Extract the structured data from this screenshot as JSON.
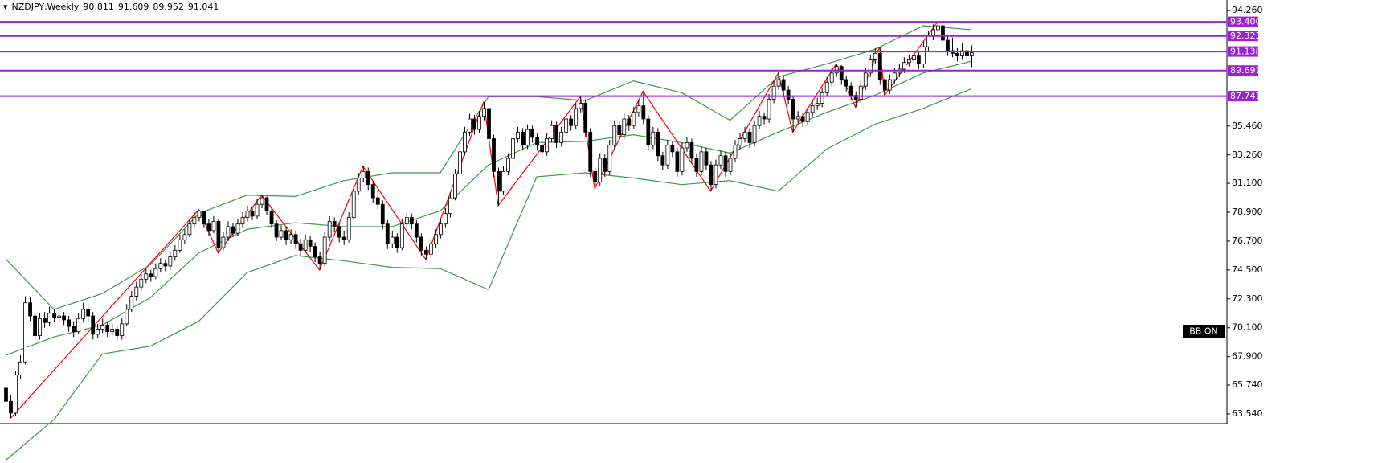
{
  "chart_data": {
    "type": "candlestick",
    "title": "NZDJPY,Weekly",
    "header_values": [
      90.811,
      91.609,
      89.952,
      91.041
    ],
    "annotation": "BB ON",
    "ylim": [
      62.8,
      95.06
    ],
    "yticks": [
      {
        "value": 94.26,
        "label": "94.260"
      },
      {
        "value": 85.46,
        "label": "85.460"
      },
      {
        "value": 83.26,
        "label": "83.260"
      },
      {
        "value": 81.1,
        "label": "81.100"
      },
      {
        "value": 78.9,
        "label": "78.900"
      },
      {
        "value": 76.7,
        "label": "76.700"
      },
      {
        "value": 74.5,
        "label": "74.500"
      },
      {
        "value": 72.3,
        "label": "72.300"
      },
      {
        "value": 70.1,
        "label": "70.100"
      },
      {
        "value": 67.9,
        "label": "67.900"
      },
      {
        "value": 65.74,
        "label": "65.740"
      },
      {
        "value": 63.54,
        "label": "63.540"
      }
    ],
    "up_color": "#ffffff",
    "down_color": "#000000",
    "band_color": "#3b9a4b",
    "zigzag_color": "#ff0000",
    "level_color": "#9b1fd6",
    "levels": [
      {
        "value": 93.4,
        "label": "93.400"
      },
      {
        "value": 92.323,
        "label": "92.323"
      },
      {
        "value": 91.138,
        "label": "91.138"
      },
      {
        "value": 89.691,
        "label": "89.691"
      },
      {
        "value": 87.741,
        "label": "87.741"
      }
    ],
    "candles": [
      [
        65.5,
        66.0,
        63.8,
        64.5
      ],
      [
        64.5,
        65.0,
        63.2,
        63.6
      ],
      [
        63.6,
        66.8,
        63.4,
        66.5
      ],
      [
        66.5,
        68.0,
        66.2,
        67.5
      ],
      [
        67.5,
        72.5,
        67.3,
        72.0
      ],
      [
        72.0,
        72.4,
        70.6,
        71.0
      ],
      [
        71.0,
        71.4,
        69.0,
        69.5
      ],
      [
        69.5,
        71.2,
        69.2,
        70.8
      ],
      [
        70.8,
        71.3,
        70.1,
        70.5
      ],
      [
        70.5,
        71.7,
        70.2,
        71.2
      ],
      [
        71.2,
        71.5,
        70.5,
        70.9
      ],
      [
        70.9,
        71.4,
        70.6,
        71.0
      ],
      [
        71.0,
        71.3,
        70.3,
        70.7
      ],
      [
        70.7,
        71.0,
        69.8,
        70.2
      ],
      [
        70.2,
        70.6,
        69.4,
        69.8
      ],
      [
        69.8,
        71.2,
        69.6,
        70.8
      ],
      [
        70.8,
        72.0,
        70.5,
        71.5
      ],
      [
        71.5,
        71.9,
        70.6,
        71.0
      ],
      [
        71.0,
        71.3,
        69.2,
        69.6
      ],
      [
        69.6,
        70.4,
        69.3,
        70.0
      ],
      [
        70.0,
        70.8,
        69.7,
        70.3
      ],
      [
        70.3,
        70.6,
        69.4,
        69.8
      ],
      [
        69.8,
        70.4,
        69.5,
        70.0
      ],
      [
        70.0,
        70.3,
        69.1,
        69.5
      ],
      [
        69.5,
        70.8,
        69.2,
        70.4
      ],
      [
        70.4,
        71.9,
        70.2,
        71.5
      ],
      [
        71.5,
        72.9,
        71.3,
        72.5
      ],
      [
        72.5,
        73.6,
        72.2,
        73.2
      ],
      [
        73.2,
        74.2,
        72.9,
        73.8
      ],
      [
        73.8,
        74.6,
        73.5,
        74.2
      ],
      [
        74.2,
        74.5,
        73.6,
        74.0
      ],
      [
        74.0,
        75.0,
        73.8,
        74.6
      ],
      [
        74.6,
        75.4,
        74.3,
        75.0
      ],
      [
        75.0,
        75.3,
        74.4,
        74.8
      ],
      [
        74.8,
        75.9,
        74.5,
        75.5
      ],
      [
        75.5,
        76.4,
        75.2,
        76.0
      ],
      [
        76.0,
        77.2,
        75.8,
        76.8
      ],
      [
        76.8,
        77.6,
        76.5,
        77.2
      ],
      [
        77.2,
        78.4,
        77.0,
        78.0
      ],
      [
        78.0,
        78.9,
        77.7,
        78.5
      ],
      [
        78.5,
        79.1,
        78.2,
        79.0
      ],
      [
        79.0,
        79.0,
        77.7,
        78.0
      ],
      [
        78.0,
        78.4,
        77.1,
        77.5
      ],
      [
        77.5,
        78.6,
        77.3,
        78.2
      ],
      [
        78.2,
        78.4,
        75.8,
        76.2
      ],
      [
        76.2,
        77.4,
        76.0,
        77.0
      ],
      [
        77.0,
        78.2,
        76.7,
        77.8
      ],
      [
        77.8,
        78.1,
        77.0,
        77.3
      ],
      [
        77.3,
        78.4,
        77.1,
        78.0
      ],
      [
        78.0,
        78.9,
        77.7,
        78.5
      ],
      [
        78.5,
        79.4,
        78.2,
        79.0
      ],
      [
        79.0,
        79.3,
        78.3,
        78.6
      ],
      [
        78.6,
        79.9,
        78.4,
        79.5
      ],
      [
        79.5,
        80.2,
        79.2,
        80.0
      ],
      [
        80.0,
        80.1,
        78.7,
        79.0
      ],
      [
        79.0,
        79.3,
        77.7,
        78.0
      ],
      [
        78.0,
        78.3,
        76.7,
        77.0
      ],
      [
        77.0,
        77.9,
        76.8,
        77.5
      ],
      [
        77.5,
        77.8,
        76.4,
        76.8
      ],
      [
        76.8,
        77.6,
        76.5,
        77.2
      ],
      [
        77.2,
        77.5,
        76.1,
        76.5
      ],
      [
        76.5,
        76.9,
        75.6,
        76.0
      ],
      [
        76.0,
        77.2,
        75.8,
        76.8
      ],
      [
        76.8,
        77.1,
        75.9,
        76.3
      ],
      [
        76.3,
        76.6,
        75.1,
        75.5
      ],
      [
        75.5,
        75.9,
        74.5,
        75.0
      ],
      [
        75.0,
        77.4,
        74.8,
        77.0
      ],
      [
        77.0,
        78.6,
        76.7,
        78.2
      ],
      [
        78.2,
        78.5,
        77.4,
        77.8
      ],
      [
        77.8,
        78.1,
        76.6,
        77.0
      ],
      [
        77.0,
        77.5,
        76.4,
        76.8
      ],
      [
        76.8,
        78.9,
        76.6,
        78.5
      ],
      [
        78.5,
        80.9,
        78.3,
        80.5
      ],
      [
        80.5,
        81.9,
        80.2,
        81.5
      ],
      [
        81.5,
        82.4,
        81.2,
        82.0
      ],
      [
        82.0,
        82.3,
        80.6,
        81.0
      ],
      [
        81.0,
        81.3,
        79.6,
        80.0
      ],
      [
        80.0,
        80.6,
        79.1,
        79.5
      ],
      [
        79.5,
        79.8,
        77.6,
        78.0
      ],
      [
        78.0,
        78.3,
        76.1,
        76.5
      ],
      [
        76.5,
        77.5,
        76.2,
        77.0
      ],
      [
        77.0,
        77.3,
        75.8,
        76.2
      ],
      [
        76.2,
        78.4,
        76.0,
        78.0
      ],
      [
        78.0,
        78.9,
        77.7,
        78.5
      ],
      [
        78.5,
        78.8,
        77.6,
        78.0
      ],
      [
        78.0,
        78.3,
        76.6,
        77.0
      ],
      [
        77.0,
        77.3,
        75.6,
        76.0
      ],
      [
        76.0,
        76.3,
        75.3,
        75.7
      ],
      [
        75.7,
        76.9,
        75.4,
        76.5
      ],
      [
        76.5,
        77.6,
        76.2,
        77.2
      ],
      [
        77.2,
        78.4,
        76.9,
        78.0
      ],
      [
        78.0,
        79.2,
        77.7,
        78.8
      ],
      [
        78.8,
        80.4,
        78.5,
        80.0
      ],
      [
        80.0,
        82.2,
        79.8,
        81.8
      ],
      [
        81.8,
        83.9,
        81.5,
        83.5
      ],
      [
        83.5,
        85.4,
        83.2,
        85.0
      ],
      [
        85.0,
        86.4,
        84.7,
        86.0
      ],
      [
        86.0,
        86.3,
        84.8,
        85.2
      ],
      [
        85.2,
        86.6,
        84.9,
        86.2
      ],
      [
        86.2,
        87.3,
        85.9,
        86.8
      ],
      [
        86.8,
        87.0,
        84.1,
        84.5
      ],
      [
        84.5,
        84.8,
        81.6,
        82.0
      ],
      [
        82.0,
        82.3,
        79.4,
        80.5
      ],
      [
        80.5,
        82.4,
        80.2,
        82.0
      ],
      [
        82.0,
        83.4,
        81.7,
        83.0
      ],
      [
        83.0,
        84.9,
        82.7,
        84.5
      ],
      [
        84.5,
        85.4,
        84.2,
        85.0
      ],
      [
        85.0,
        85.3,
        83.6,
        84.0
      ],
      [
        84.0,
        85.6,
        83.7,
        85.2
      ],
      [
        85.2,
        85.5,
        84.2,
        84.6
      ],
      [
        84.6,
        84.9,
        83.6,
        84.0
      ],
      [
        84.0,
        84.3,
        83.1,
        83.5
      ],
      [
        83.5,
        84.9,
        83.2,
        84.5
      ],
      [
        84.5,
        85.9,
        84.2,
        85.5
      ],
      [
        85.5,
        85.8,
        83.8,
        84.2
      ],
      [
        84.2,
        85.4,
        83.9,
        85.0
      ],
      [
        85.0,
        86.4,
        84.7,
        86.0
      ],
      [
        86.0,
        86.3,
        85.1,
        85.5
      ],
      [
        85.5,
        87.2,
        85.2,
        86.8
      ],
      [
        86.8,
        87.7,
        86.5,
        87.2
      ],
      [
        87.2,
        87.5,
        84.6,
        85.0
      ],
      [
        85.0,
        85.3,
        81.6,
        82.0
      ],
      [
        82.0,
        82.3,
        80.7,
        81.2
      ],
      [
        81.2,
        83.4,
        80.9,
        83.0
      ],
      [
        83.0,
        83.3,
        81.6,
        82.0
      ],
      [
        82.0,
        84.4,
        81.7,
        84.0
      ],
      [
        84.0,
        85.9,
        83.7,
        85.5
      ],
      [
        85.5,
        85.8,
        84.4,
        84.8
      ],
      [
        84.8,
        86.4,
        84.5,
        86.0
      ],
      [
        86.0,
        86.3,
        85.1,
        85.5
      ],
      [
        85.5,
        86.9,
        85.2,
        86.5
      ],
      [
        86.5,
        87.4,
        86.2,
        87.0
      ],
      [
        87.0,
        88.1,
        85.6,
        86.0
      ],
      [
        86.0,
        86.3,
        83.6,
        84.0
      ],
      [
        84.0,
        85.4,
        83.7,
        85.0
      ],
      [
        85.0,
        85.3,
        82.8,
        83.2
      ],
      [
        83.2,
        83.5,
        82.1,
        82.5
      ],
      [
        82.5,
        84.4,
        82.2,
        84.0
      ],
      [
        84.0,
        84.3,
        83.1,
        83.5
      ],
      [
        83.5,
        83.8,
        81.6,
        82.0
      ],
      [
        82.0,
        84.2,
        81.7,
        83.8
      ],
      [
        83.8,
        84.6,
        83.5,
        84.2
      ],
      [
        84.2,
        84.5,
        82.6,
        83.0
      ],
      [
        83.0,
        83.3,
        81.6,
        82.0
      ],
      [
        82.0,
        83.9,
        81.7,
        83.5
      ],
      [
        83.5,
        83.8,
        82.1,
        82.5
      ],
      [
        82.5,
        82.8,
        80.5,
        81.0
      ],
      [
        81.0,
        82.9,
        80.7,
        82.5
      ],
      [
        82.5,
        83.6,
        82.2,
        83.2
      ],
      [
        83.2,
        83.5,
        81.6,
        82.0
      ],
      [
        82.0,
        83.4,
        81.7,
        83.0
      ],
      [
        83.0,
        84.4,
        82.7,
        84.0
      ],
      [
        84.0,
        84.9,
        83.7,
        84.5
      ],
      [
        84.5,
        85.4,
        84.2,
        85.0
      ],
      [
        85.0,
        85.3,
        83.8,
        84.2
      ],
      [
        84.2,
        85.9,
        83.9,
        85.5
      ],
      [
        85.5,
        86.6,
        85.2,
        86.2
      ],
      [
        86.2,
        86.5,
        85.6,
        86.0
      ],
      [
        86.0,
        87.9,
        85.7,
        87.5
      ],
      [
        87.5,
        88.9,
        87.2,
        88.5
      ],
      [
        88.5,
        89.5,
        88.2,
        89.0
      ],
      [
        89.0,
        89.3,
        87.8,
        88.2
      ],
      [
        88.2,
        88.5,
        87.1,
        87.5
      ],
      [
        87.5,
        87.8,
        85.0,
        86.0
      ],
      [
        86.0,
        86.6,
        85.7,
        86.2
      ],
      [
        86.2,
        86.5,
        85.4,
        85.8
      ],
      [
        85.8,
        86.9,
        85.5,
        86.5
      ],
      [
        86.5,
        87.4,
        86.2,
        87.0
      ],
      [
        87.0,
        87.6,
        86.7,
        87.2
      ],
      [
        87.2,
        88.4,
        86.9,
        88.0
      ],
      [
        88.0,
        89.2,
        87.7,
        88.8
      ],
      [
        88.8,
        89.9,
        88.5,
        89.5
      ],
      [
        89.5,
        90.2,
        89.2,
        90.0
      ],
      [
        90.0,
        90.1,
        88.6,
        89.0
      ],
      [
        89.0,
        89.3,
        88.1,
        88.5
      ],
      [
        88.5,
        88.8,
        87.4,
        87.8
      ],
      [
        87.8,
        88.1,
        86.9,
        87.5
      ],
      [
        87.5,
        88.9,
        87.2,
        88.5
      ],
      [
        88.5,
        89.9,
        88.2,
        89.5
      ],
      [
        89.5,
        90.9,
        89.2,
        90.5
      ],
      [
        90.5,
        91.4,
        90.2,
        91.0
      ],
      [
        91.0,
        91.5,
        88.6,
        89.0
      ],
      [
        89.0,
        89.3,
        87.8,
        88.2
      ],
      [
        88.2,
        89.4,
        87.9,
        89.0
      ],
      [
        89.0,
        89.9,
        88.7,
        89.5
      ],
      [
        89.5,
        90.2,
        89.2,
        89.8
      ],
      [
        89.8,
        90.7,
        89.5,
        90.3
      ],
      [
        90.3,
        90.9,
        90.0,
        90.5
      ],
      [
        90.5,
        91.2,
        90.2,
        90.8
      ],
      [
        90.8,
        91.1,
        89.8,
        90.2
      ],
      [
        90.2,
        91.9,
        89.9,
        91.5
      ],
      [
        91.5,
        92.7,
        91.2,
        92.3
      ],
      [
        92.3,
        93.2,
        92.0,
        92.8
      ],
      [
        92.8,
        93.4,
        92.5,
        93.1
      ],
      [
        93.1,
        93.3,
        91.6,
        92.0
      ],
      [
        92.0,
        92.3,
        90.8,
        91.2
      ],
      [
        91.2,
        92.2,
        90.7,
        91.0
      ],
      [
        91.0,
        91.4,
        90.4,
        90.8
      ],
      [
        90.8,
        91.8,
        90.5,
        91.2
      ],
      [
        91.2,
        91.5,
        90.4,
        90.8
      ],
      [
        90.811,
        91.609,
        89.952,
        91.041
      ]
    ],
    "bands": {
      "x": [
        0,
        10,
        20,
        30,
        40,
        50,
        60,
        70,
        80,
        90,
        100,
        110,
        120,
        130,
        140,
        150,
        160,
        170,
        180,
        190,
        200
      ],
      "upper": [
        75.35,
        71.5,
        72.7,
        74.9,
        78.8,
        80.2,
        80.1,
        81.3,
        81.9,
        81.9,
        87.7,
        87.7,
        87.4,
        88.9,
        88.0,
        85.9,
        89.2,
        90.2,
        91.3,
        93.1,
        92.8
      ],
      "middle": [
        68.0,
        69.4,
        70.3,
        72.4,
        75.8,
        77.6,
        78.1,
        77.8,
        77.8,
        79.0,
        82.5,
        84.2,
        84.3,
        84.8,
        84.2,
        83.4,
        85.0,
        86.5,
        87.8,
        89.5,
        90.4
      ],
      "lower": [
        60.0,
        63.1,
        68.1,
        68.7,
        70.6,
        74.3,
        75.6,
        75.2,
        74.7,
        74.6,
        73.0,
        81.6,
        81.9,
        81.5,
        81.0,
        81.3,
        80.5,
        83.7,
        85.6,
        86.8,
        88.3
      ]
    },
    "zigzag": {
      "x": [
        1,
        40,
        44,
        53,
        65,
        74,
        87,
        99,
        102,
        119,
        122,
        132,
        146,
        160,
        163,
        172,
        176,
        181,
        182,
        193
      ],
      "values": [
        63.2,
        79.1,
        75.8,
        80.2,
        74.5,
        82.4,
        75.3,
        87.3,
        79.4,
        87.7,
        80.7,
        88.1,
        80.5,
        89.5,
        85.0,
        90.2,
        86.9,
        91.5,
        87.8,
        93.4
      ]
    }
  }
}
